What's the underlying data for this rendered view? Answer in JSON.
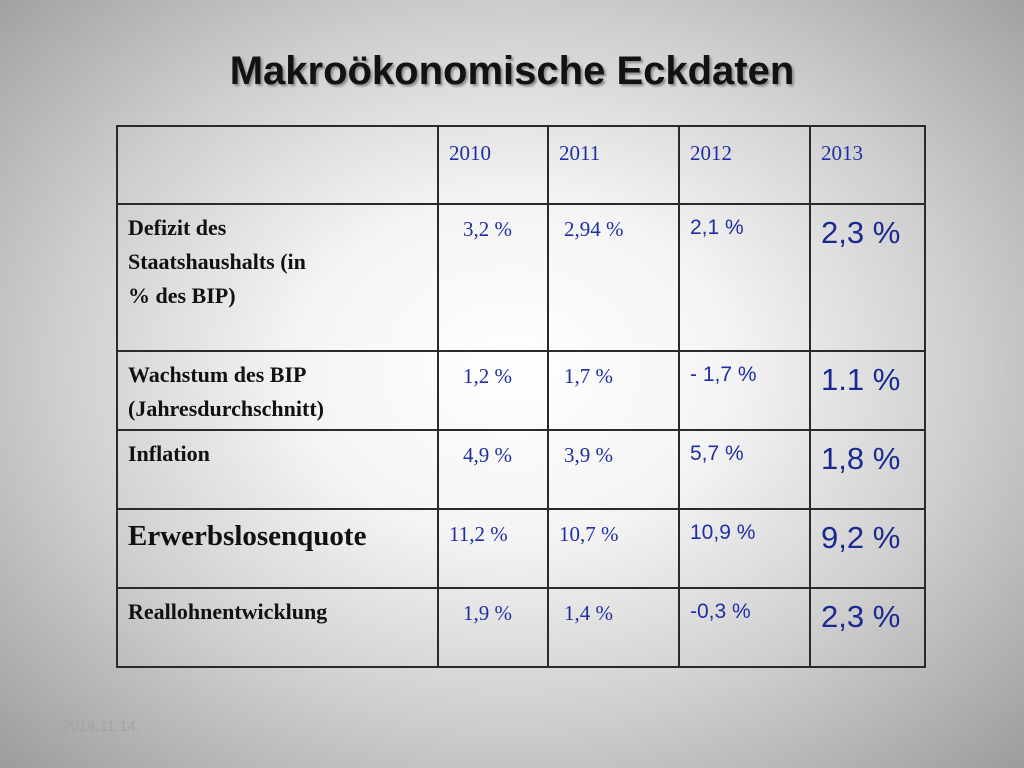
{
  "title": "Makroökonomische Eckdaten",
  "table": {
    "years": [
      "2010",
      "2011",
      "2012",
      "2013"
    ],
    "rows": [
      {
        "label": "Defizit des Staatshaushalts (in % des BIP)",
        "values": [
          "3,2 %",
          "2,94 %",
          "2,1 %",
          "2,3 %"
        ]
      },
      {
        "label": "Wachstum des BIP (Jahresdurchschnitt)",
        "values": [
          "1,2 %",
          "1,7 %",
          "- 1,7 %",
          "1.1 %"
        ]
      },
      {
        "label": "Inflation",
        "values": [
          "4,9 %",
          "3,9 %",
          "5,7 %",
          "1,8 %"
        ]
      },
      {
        "label": "Erwerbslosenquote",
        "values": [
          "11,2 %",
          "10,7 %",
          "10,9 %",
          "9,2 %"
        ]
      },
      {
        "label": "Reallohnentwicklung",
        "values": [
          "1,9 %",
          "1,4 %",
          "-0,3 %",
          "2,3 %"
        ]
      }
    ]
  },
  "footer": "2014.11.14."
}
